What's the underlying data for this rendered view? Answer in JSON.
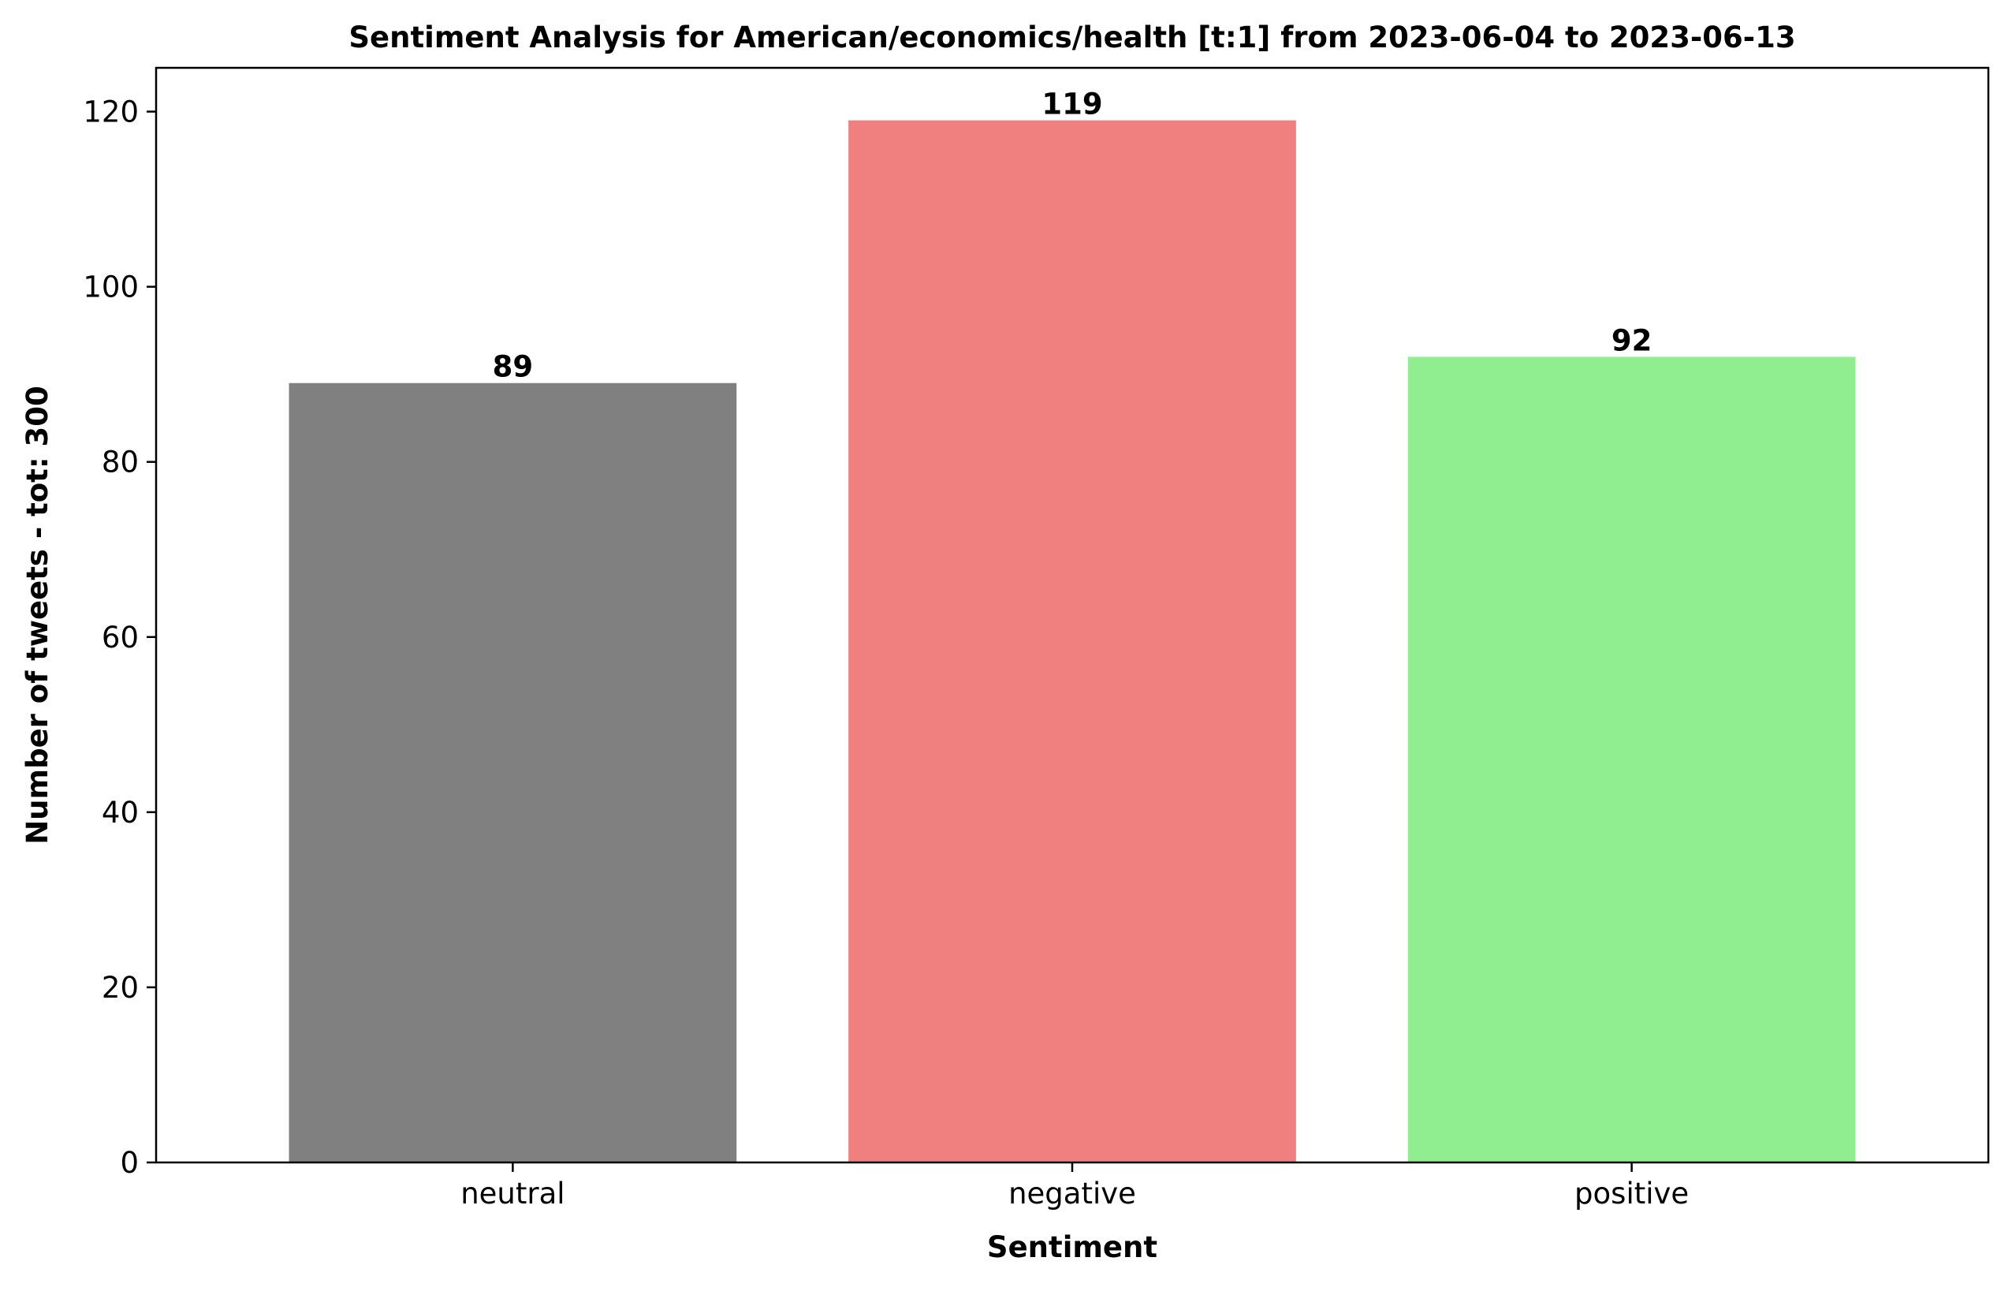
{
  "chart_data": {
    "type": "bar",
    "title": "Sentiment Analysis for American/economics/health [t:1] from 2023-06-04 to 2023-06-13",
    "xlabel": "Sentiment",
    "ylabel": "Number of tweets - tot: 300",
    "categories": [
      "neutral",
      "negative",
      "positive"
    ],
    "values": [
      89,
      119,
      92
    ],
    "data_labels": [
      "89",
      "119",
      "92"
    ],
    "colors": [
      "#808080",
      "#f08080",
      "#90ee90"
    ],
    "ylim": [
      0,
      125
    ],
    "yticks": [
      0,
      20,
      40,
      60,
      80,
      100,
      120
    ],
    "grid": false,
    "legend": "none"
  }
}
